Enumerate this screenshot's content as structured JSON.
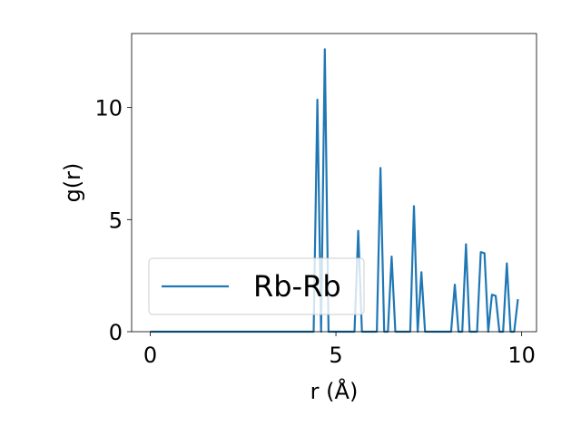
{
  "chart_data": {
    "type": "line",
    "xlabel": "r (Å)",
    "ylabel": "g(r)",
    "xlim": [
      -0.5,
      10.4
    ],
    "ylim": [
      0,
      13.3
    ],
    "xticks": [
      0,
      5,
      10
    ],
    "yticks": [
      0,
      5,
      10
    ],
    "grid": false,
    "legend_position": "lower left",
    "series": [
      {
        "name": "Rb-Rb",
        "color": "#1f77b4",
        "x": [
          0,
          4.4,
          4.5,
          4.6,
          4.7,
          4.8,
          5.5,
          5.6,
          5.7,
          6.1,
          6.2,
          6.3,
          6.4,
          6.5,
          6.6,
          7.0,
          7.1,
          7.2,
          7.3,
          7.4,
          8.1,
          8.2,
          8.3,
          8.4,
          8.5,
          8.6,
          8.8,
          8.9,
          9.0,
          9.1,
          9.2,
          9.3,
          9.4,
          9.5,
          9.6,
          9.7,
          9.8,
          9.9
        ],
        "y": [
          0,
          0,
          10.35,
          0,
          12.6,
          0,
          0,
          4.5,
          0,
          0,
          7.3,
          0,
          0,
          3.35,
          0,
          0,
          5.6,
          0,
          2.65,
          0,
          0,
          2.1,
          0,
          0,
          3.9,
          0,
          0,
          3.55,
          3.5,
          0,
          1.65,
          1.6,
          0,
          0,
          3.05,
          0,
          0,
          1.45
        ]
      }
    ]
  }
}
